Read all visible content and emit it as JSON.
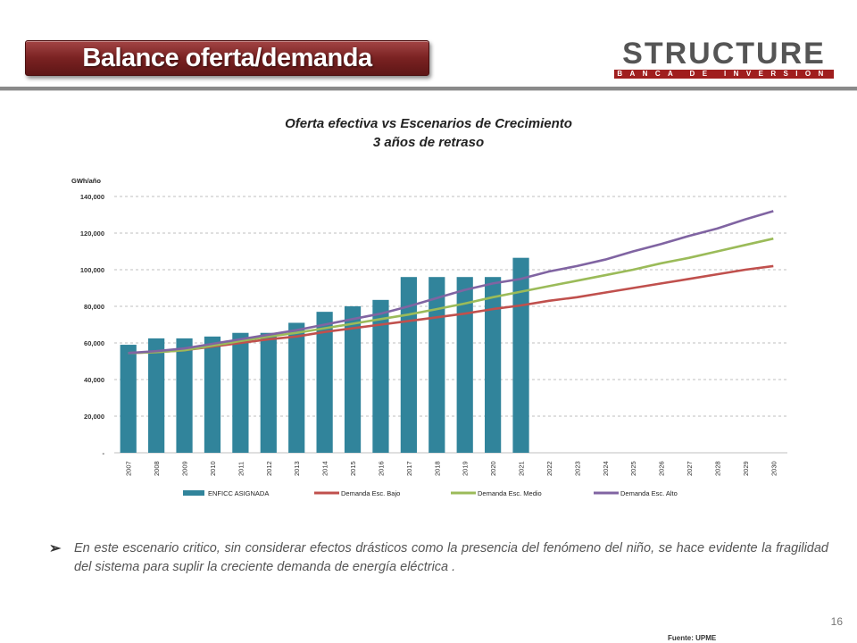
{
  "header": {
    "title": "Balance oferta/demanda",
    "logo_main": "STRUCTURE",
    "logo_sub": "BANCA DE INVERSION"
  },
  "colors": {
    "banner": "#7a2222",
    "bars": "#31849b",
    "bajo": "#c0504d",
    "medio": "#9bbb59",
    "alto": "#8064a2",
    "grid": "#bfbfbf"
  },
  "chart_data": {
    "type": "bar",
    "title": "Oferta efectiva vs Escenarios de Crecimiento",
    "subtitle": "3 años de retraso",
    "ylabel": "GWh/año",
    "xlabel": "",
    "ylim": [
      0,
      140000
    ],
    "yticks": [
      0,
      20000,
      40000,
      60000,
      80000,
      100000,
      120000,
      140000
    ],
    "ytick_labels": [
      "-",
      "20,000",
      "40,000",
      "60,000",
      "80,000",
      "100,000",
      "120,000",
      "140,000"
    ],
    "grid": true,
    "legend_position": "bottom",
    "categories": [
      "2007",
      "2008",
      "2009",
      "2010",
      "2011",
      "2012",
      "2013",
      "2014",
      "2015",
      "2016",
      "2017",
      "2018",
      "2019",
      "2020",
      "2021",
      "2022",
      "2023",
      "2024",
      "2025",
      "2026",
      "2027",
      "2028",
      "2029",
      "2030"
    ],
    "bars": {
      "name": "ENFICC ASIGNADA",
      "values": [
        59000,
        62500,
        62500,
        63500,
        65500,
        65500,
        71000,
        77000,
        80000,
        83500,
        96000,
        96000,
        96000,
        96000,
        106500,
        null,
        null,
        null,
        null,
        null,
        null,
        null,
        null,
        null
      ]
    },
    "series": [
      {
        "name": "Demanda Esc. Bajo",
        "type": "line",
        "values": [
          54500,
          55000,
          56000,
          58000,
          60000,
          62000,
          63500,
          66000,
          68000,
          70000,
          72000,
          74000,
          76000,
          78500,
          80500,
          83000,
          85000,
          87500,
          90000,
          92500,
          95000,
          97500,
          100000,
          102000
        ]
      },
      {
        "name": "Demanda Esc. Medio",
        "type": "line",
        "values": [
          54500,
          55000,
          56000,
          58500,
          61000,
          63500,
          65500,
          68000,
          70500,
          73000,
          75500,
          78500,
          81500,
          85000,
          88000,
          91000,
          94000,
          97000,
          100000,
          103500,
          106500,
          110000,
          113500,
          117000
        ]
      },
      {
        "name": "Demanda Esc. Alto",
        "type": "line",
        "values": [
          54500,
          55500,
          57000,
          59500,
          62000,
          64500,
          67000,
          70000,
          73000,
          76000,
          80000,
          84500,
          89000,
          92500,
          95000,
          99000,
          102000,
          105500,
          110000,
          114000,
          118500,
          122500,
          127500,
          132000
        ]
      }
    ]
  },
  "note": {
    "text": "En este escenario critico, sin considerar efectos drásticos como la presencia del fenómeno del niño, se hace evidente la fragilidad del sistema para suplir la creciente demanda de energía eléctrica ."
  },
  "footer": {
    "page_number": "16",
    "source": "Fuente: UPME"
  }
}
